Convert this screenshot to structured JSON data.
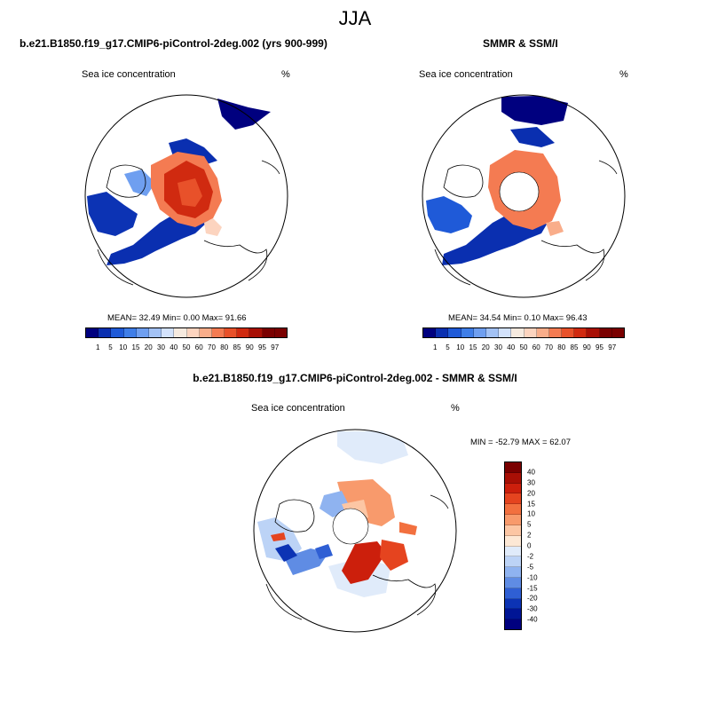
{
  "season": "JJA",
  "colors": {
    "seq": [
      "#00007f",
      "#0a2fb0",
      "#1f5ad8",
      "#3f7ee8",
      "#6f9ff0",
      "#a3c2f5",
      "#d3e2fb",
      "#f6eadf",
      "#fcd4bf",
      "#f9ad8a",
      "#f47b52",
      "#e8512a",
      "#d02a10",
      "#a80f05",
      "#7a0000"
    ],
    "div": [
      "#7a0000",
      "#a80f05",
      "#cc1f0c",
      "#e5441f",
      "#f2703f",
      "#f89a6c",
      "#fcc6a4",
      "#fde8d5",
      "#e0ebfa",
      "#bcd3f6",
      "#8fb3f0",
      "#5f8ce4",
      "#2f5fd4",
      "#0c33b4",
      "#001595",
      "#00007f"
    ]
  },
  "chart_data": [
    {
      "type": "heatmap",
      "projection": "north-polar-stereographic",
      "title": "b.e21.B1850.f19_g17.CMIP6-piControl-2deg.002 (yrs 900-999)",
      "variable": "Sea ice concentration",
      "units": "%",
      "stats": {
        "mean": 32.49,
        "min": 0.0,
        "max": 91.66
      },
      "stats_text": "MEAN=  32.49  Min=   0.00  Max=  91.66",
      "colorbar_levels": [
        1,
        5,
        10,
        15,
        20,
        30,
        40,
        50,
        60,
        70,
        80,
        85,
        90,
        95,
        97
      ]
    },
    {
      "type": "heatmap",
      "projection": "north-polar-stereographic",
      "title": "SMMR & SSM/I",
      "variable": "Sea ice concentration",
      "units": "%",
      "stats": {
        "mean": 34.54,
        "min": 0.1,
        "max": 96.43
      },
      "stats_text": "MEAN=  34.54  Min=   0.10  Max=  96.43",
      "colorbar_levels": [
        1,
        5,
        10,
        15,
        20,
        30,
        40,
        50,
        60,
        70,
        80,
        85,
        90,
        95,
        97
      ]
    },
    {
      "type": "heatmap",
      "projection": "north-polar-stereographic",
      "title": "b.e21.B1850.f19_g17.CMIP6-piControl-2deg.002 - SMMR & SSM/I",
      "variable": "Sea ice concentration",
      "units": "%",
      "stats": {
        "min": -52.79,
        "max": 62.07
      },
      "stats_text": "MIN = -52.79 MAX =  62.07",
      "colorbar_levels": [
        "40",
        "30",
        "20",
        "15",
        "10",
        "5",
        "2",
        "0",
        "-2",
        "-5",
        "-10",
        "-15",
        "-20",
        "-30",
        "-40"
      ]
    }
  ]
}
